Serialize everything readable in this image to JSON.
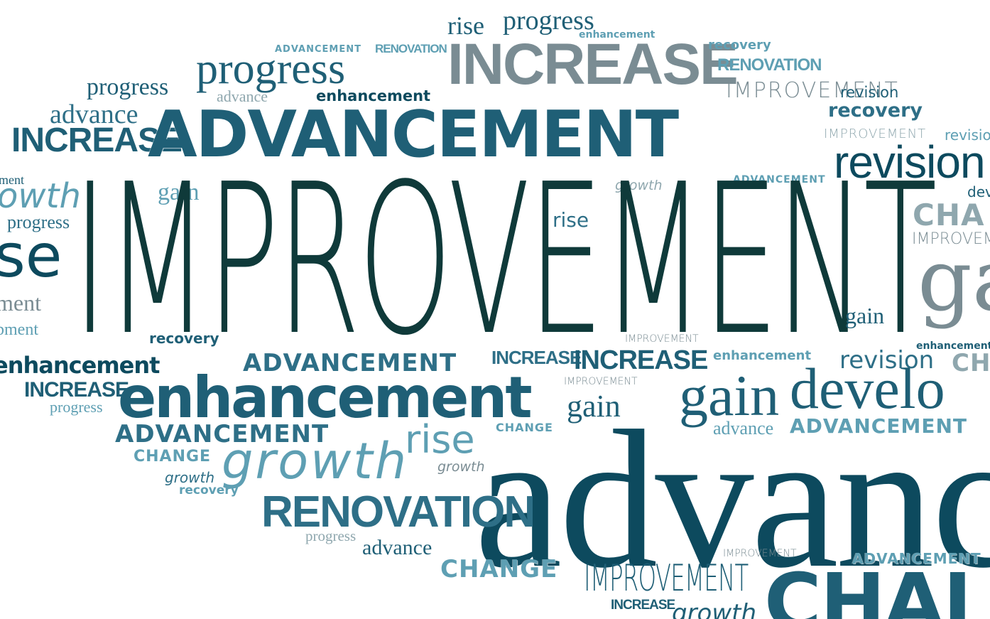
{
  "colors": {
    "darkest": "#0f3a3a",
    "navy": "#0d4a5e",
    "teal": "#1f5f76",
    "mid": "#2e6f87",
    "light": "#5e9fb3",
    "grey": "#7a8c93",
    "pale": "#8fa7ae"
  },
  "words": {
    "w001": "rise",
    "w002": "progress",
    "w003": "enhancement",
    "w004": "ADVANCEMENT",
    "w005": "RENOVATION",
    "w006": "INCREASE",
    "w007": "recovery",
    "w008": "RENOVATION",
    "w009": "progress",
    "w010": "progress",
    "w011": "advance",
    "w012": "enhancement",
    "w013": "IMPROVEMENT",
    "w014": "revision",
    "w015": "advance",
    "w016": "recovery",
    "w017": "INCREASE",
    "w018": "ADVANCEMENT",
    "w019": "IMPROVEMENT",
    "w020": "revision",
    "w021": "ment",
    "w022": "owth",
    "w023": "gain",
    "w024": "ADVANCEMENT",
    "w025": "growth",
    "w026": "progress",
    "w027": "IMPROVEMENT",
    "w028": "deve",
    "w029": "se",
    "w030": "rise",
    "w031": "CHA",
    "w032": "IMPROVEMENT",
    "w033": "ga",
    "w034": "ment",
    "w035": "gain",
    "w036": "pment",
    "w037": "recovery",
    "w038": "IMPROVEMENT",
    "w039": "enhancement",
    "w040": "enhancement",
    "w041": "ADVANCEMENT",
    "w042": "INCREASE",
    "w043": "INCREASE",
    "w044": "enhancement",
    "w045": "revision",
    "w046": "CHA",
    "w047": "INCREASE",
    "w048": "IMPROVEMENT",
    "w049": "enhancement",
    "w050": "gain",
    "w051": "develo",
    "w052": "progress",
    "w053": "gain",
    "w054": "ADVANCEMENT",
    "w055": "CHANGE",
    "w056": "advance",
    "w057": "ADVANCEMENT",
    "w058": "rise",
    "w059": "CHANGE",
    "w060": "growth",
    "w061": "growth",
    "w062": "advanc",
    "w063": "growth",
    "w064": "recovery",
    "w065": "RENOVATION",
    "w066": "progress",
    "w067": "advance",
    "w068": "IMPROVEMENT",
    "w069": "ADVANCEMENT",
    "w070": "CHANGE",
    "w071": "IMPROVEMENT",
    "w072": "INCREASE",
    "w073": "CHAI",
    "w074": "growth",
    "w075": "INCREASE"
  }
}
